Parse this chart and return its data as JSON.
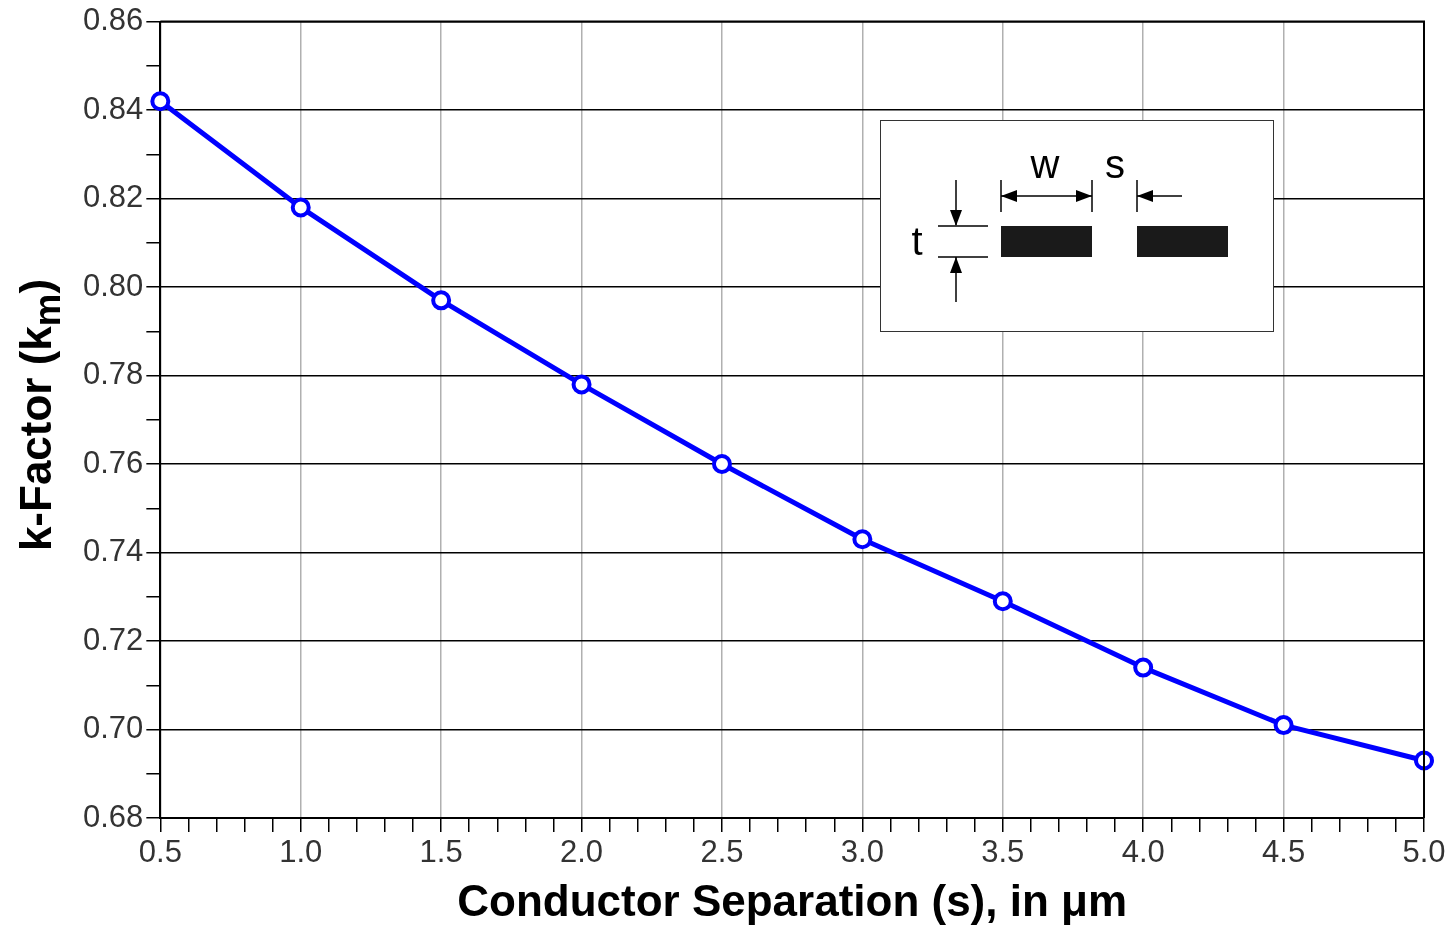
{
  "chart_data": {
    "type": "line",
    "xlabel": "Conductor Separation (s), in μm",
    "ylabel": "k-Factor (k$_{m}$)",
    "x": [
      0.5,
      1.0,
      1.5,
      2.0,
      2.5,
      3.0,
      3.5,
      4.0,
      4.5,
      5.0
    ],
    "series": [
      {
        "color": "#0000ff",
        "values": [
          0.842,
          0.818,
          0.797,
          0.778,
          0.76,
          0.743,
          0.729,
          0.714,
          0.701,
          0.693
        ]
      }
    ],
    "xlim": [
      0.5,
      5.0
    ],
    "xticks": [
      {
        "value": 0.5,
        "label": "0.5"
      },
      {
        "value": 0.6,
        "label": null
      },
      {
        "value": 0.7,
        "label": null
      },
      {
        "value": 0.8,
        "label": null
      },
      {
        "value": 0.9,
        "label": null
      },
      {
        "value": 1.0,
        "label": "1.0"
      },
      {
        "value": 1.1,
        "label": null
      },
      {
        "value": 1.2,
        "label": null
      },
      {
        "value": 1.3,
        "label": null
      },
      {
        "value": 1.4,
        "label": null
      },
      {
        "value": 1.5,
        "label": "1.5"
      },
      {
        "value": 1.6,
        "label": null
      },
      {
        "value": 1.7,
        "label": null
      },
      {
        "value": 1.8,
        "label": null
      },
      {
        "value": 1.9,
        "label": null
      },
      {
        "value": 2.0,
        "label": "2.0"
      },
      {
        "value": 2.1,
        "label": null
      },
      {
        "value": 2.2,
        "label": null
      },
      {
        "value": 2.3,
        "label": null
      },
      {
        "value": 2.4,
        "label": null
      },
      {
        "value": 2.5,
        "label": "2.5"
      },
      {
        "value": 2.6,
        "label": null
      },
      {
        "value": 2.7,
        "label": null
      },
      {
        "value": 2.8,
        "label": null
      },
      {
        "value": 2.9,
        "label": null
      },
      {
        "value": 3.0,
        "label": "3.0"
      },
      {
        "value": 3.1,
        "label": null
      },
      {
        "value": 3.2,
        "label": null
      },
      {
        "value": 3.3,
        "label": null
      },
      {
        "value": 3.4,
        "label": null
      },
      {
        "value": 3.5,
        "label": "3.5"
      },
      {
        "value": 3.6,
        "label": null
      },
      {
        "value": 3.7,
        "label": null
      },
      {
        "value": 3.8,
        "label": null
      },
      {
        "value": 3.9,
        "label": null
      },
      {
        "value": 4.0,
        "label": "4.0"
      },
      {
        "value": 4.1,
        "label": null
      },
      {
        "value": 4.2,
        "label": null
      },
      {
        "value": 4.3,
        "label": null
      },
      {
        "value": 4.4,
        "label": null
      },
      {
        "value": 4.5,
        "label": "4.5"
      },
      {
        "value": 4.6,
        "label": null
      },
      {
        "value": 4.7,
        "label": null
      },
      {
        "value": 4.8,
        "label": null
      },
      {
        "value": 4.9,
        "label": null
      },
      {
        "value": 5.0,
        "label": "5.0"
      }
    ],
    "ylim": [
      0.68,
      0.86
    ],
    "yticks": [
      {
        "value": 0.68,
        "label": "0.68"
      },
      {
        "value": 0.69,
        "label": null
      },
      {
        "value": 0.7,
        "label": "0.70"
      },
      {
        "value": 0.71,
        "label": null
      },
      {
        "value": 0.72,
        "label": "0.72"
      },
      {
        "value": 0.73,
        "label": null
      },
      {
        "value": 0.74,
        "label": "0.74"
      },
      {
        "value": 0.75,
        "label": null
      },
      {
        "value": 0.76,
        "label": "0.76"
      },
      {
        "value": 0.77,
        "label": null
      },
      {
        "value": 0.78,
        "label": "0.78"
      },
      {
        "value": 0.79,
        "label": null
      },
      {
        "value": 0.8,
        "label": "0.80"
      },
      {
        "value": 0.81,
        "label": null
      },
      {
        "value": 0.82,
        "label": "0.82"
      },
      {
        "value": 0.83,
        "label": null
      },
      {
        "value": 0.84,
        "label": "0.84"
      },
      {
        "value": 0.85,
        "label": null
      },
      {
        "value": 0.86,
        "label": "0.86"
      }
    ],
    "grid": true,
    "marker": "circle",
    "line_style": "solid",
    "annotations": [
      "w",
      "s",
      "t"
    ]
  }
}
